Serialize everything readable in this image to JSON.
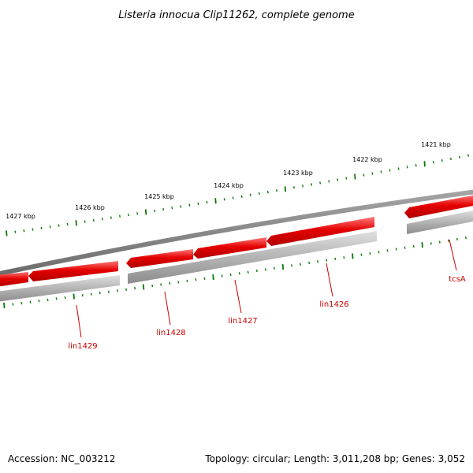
{
  "title": "Listeria innocua Clip11262, complete genome",
  "footer": {
    "accession": "Accession: NC_003212",
    "summary": "Topology: circular; Length: 3,011,208 bp; Genes: 3,052"
  },
  "kbp_labels": [
    "1427 kbp",
    "1426 kbp",
    "1425 kbp",
    "1424 kbp",
    "1423 kbp",
    "1422 kbp",
    "1421 kbp"
  ],
  "gene_labels": [
    "lin1429",
    "lin1428",
    "lin1427",
    "lin1426",
    "tcsA"
  ],
  "colors": {
    "gene_forward": "#e00000",
    "gene_highlight": "#ff6a6a",
    "backbone": "#808080",
    "reverse_strand": "#a8a8a8",
    "tick": "#0a7a0a",
    "label": "#cc0000"
  }
}
